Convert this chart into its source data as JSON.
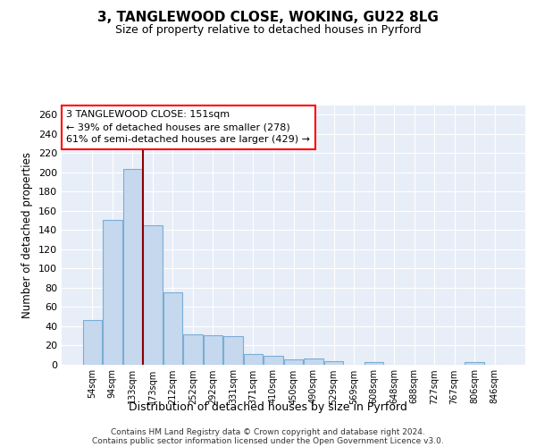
{
  "title1": "3, TANGLEWOOD CLOSE, WOKING, GU22 8LG",
  "title2": "Size of property relative to detached houses in Pyrford",
  "xlabel": "Distribution of detached houses by size in Pyrford",
  "ylabel": "Number of detached properties",
  "footer1": "Contains HM Land Registry data © Crown copyright and database right 2024.",
  "footer2": "Contains public sector information licensed under the Open Government Licence v3.0.",
  "annotation_line1": "3 TANGLEWOOD CLOSE: 151sqm",
  "annotation_line2": "← 39% of detached houses are smaller (278)",
  "annotation_line3": "61% of semi-detached houses are larger (429) →",
  "bar_color": "#c5d8ee",
  "bar_edge_color": "#7aadd4",
  "background_color": "#e8eef8",
  "categories": [
    "54sqm",
    "94sqm",
    "133sqm",
    "173sqm",
    "212sqm",
    "252sqm",
    "292sqm",
    "331sqm",
    "371sqm",
    "410sqm",
    "450sqm",
    "490sqm",
    "529sqm",
    "569sqm",
    "608sqm",
    "648sqm",
    "688sqm",
    "727sqm",
    "767sqm",
    "806sqm",
    "846sqm"
  ],
  "values": [
    46,
    150,
    203,
    145,
    75,
    31,
    30,
    29,
    11,
    9,
    5,
    6,
    3,
    0,
    2,
    0,
    0,
    0,
    0,
    2,
    0
  ],
  "ylim": [
    0,
    270
  ],
  "yticks": [
    0,
    20,
    40,
    60,
    80,
    100,
    120,
    140,
    160,
    180,
    200,
    220,
    240,
    260
  ],
  "red_line_x": 2.5,
  "red_line_color": "#8b0000"
}
